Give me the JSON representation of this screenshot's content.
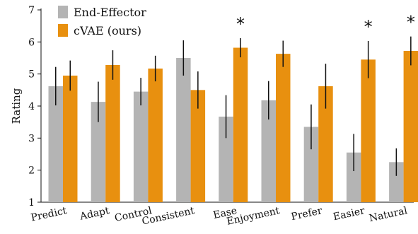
{
  "chart_data": {
    "type": "bar",
    "title": "",
    "xlabel": "",
    "ylabel": "Rating",
    "ylim": [
      1,
      7
    ],
    "yticks": [
      1,
      2,
      3,
      4,
      5,
      6,
      7
    ],
    "grid": false,
    "legend_position": "top-left",
    "categories": [
      "Predict",
      "Adapt",
      "Control",
      "Consistent",
      "Ease",
      "Enjoyment",
      "Prefer",
      "Easier",
      "Natural"
    ],
    "series": [
      {
        "name": "End-Effector",
        "color": "#b4b4b4",
        "values": [
          4.62,
          4.13,
          4.45,
          5.5,
          3.67,
          4.18,
          3.35,
          2.55,
          2.25
        ],
        "error_low": [
          4.02,
          3.5,
          4.02,
          4.95,
          3.0,
          3.58,
          2.65,
          1.97,
          1.82
        ],
        "error_high": [
          5.22,
          4.76,
          4.88,
          6.05,
          4.34,
          4.78,
          4.05,
          3.13,
          2.68
        ]
      },
      {
        "name": "cVAE (ours)",
        "color": "#e8900f",
        "values": [
          4.95,
          5.28,
          5.17,
          4.5,
          5.82,
          5.63,
          4.62,
          5.45,
          5.72
        ],
        "error_low": [
          4.48,
          4.82,
          4.77,
          3.92,
          5.52,
          5.22,
          3.92,
          4.87,
          5.27
        ],
        "error_high": [
          5.42,
          5.74,
          5.57,
          5.08,
          6.12,
          6.04,
          5.32,
          6.03,
          6.17
        ]
      }
    ],
    "annotations": [
      {
        "category": "Ease",
        "text": "*"
      },
      {
        "category": "Easier",
        "text": "*"
      },
      {
        "category": "Natural",
        "text": "*"
      }
    ]
  }
}
